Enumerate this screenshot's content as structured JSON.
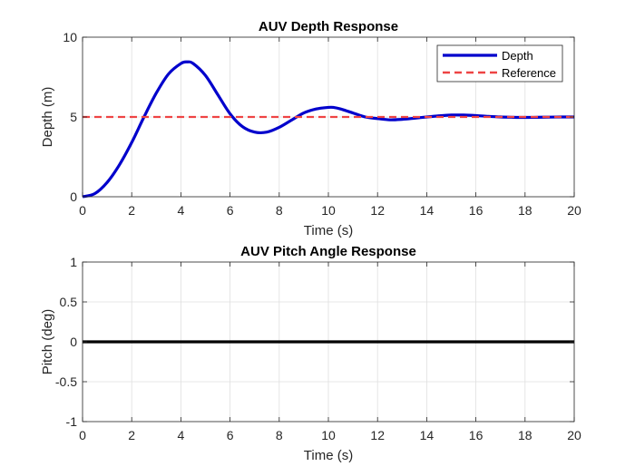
{
  "chart_data": [
    {
      "type": "line",
      "title": "AUV Depth Response",
      "xlabel": "Time (s)",
      "ylabel": "Depth (m)",
      "xlim": [
        0,
        20
      ],
      "ylim": [
        0,
        10
      ],
      "xticks": [
        0,
        2,
        4,
        6,
        8,
        10,
        12,
        14,
        16,
        18,
        20
      ],
      "yticks": [
        0,
        5,
        10
      ],
      "grid": true,
      "legend_position": "top-right",
      "series": [
        {
          "name": "Depth",
          "color": "#0000cc",
          "style": "solid",
          "x": [
            0,
            0.5,
            1,
            1.5,
            2,
            2.5,
            3,
            3.5,
            4,
            4.25,
            4.5,
            5,
            5.5,
            6,
            6.5,
            7,
            7.5,
            8,
            8.5,
            9,
            9.5,
            10,
            10.2,
            10.5,
            11,
            11.5,
            12,
            12.5,
            13,
            13.5,
            14,
            14.5,
            15,
            15.5,
            16,
            16.5,
            17,
            17.5,
            18,
            18.5,
            19,
            19.5,
            20
          ],
          "y": [
            0,
            0.2,
            0.9,
            2.0,
            3.4,
            5.0,
            6.5,
            7.7,
            8.35,
            8.45,
            8.35,
            7.6,
            6.4,
            5.2,
            4.4,
            4.05,
            4.05,
            4.35,
            4.8,
            5.25,
            5.5,
            5.6,
            5.6,
            5.5,
            5.25,
            5.0,
            4.9,
            4.82,
            4.85,
            4.92,
            5.0,
            5.07,
            5.12,
            5.12,
            5.09,
            5.04,
            5.0,
            4.98,
            4.97,
            4.98,
            4.99,
            5.0,
            5.0
          ]
        },
        {
          "name": "Reference",
          "color": "#ee4444",
          "style": "dashed",
          "x": [
            0,
            20
          ],
          "y": [
            5,
            5
          ]
        }
      ]
    },
    {
      "type": "line",
      "title": "AUV Pitch Angle Response",
      "xlabel": "Time (s)",
      "ylabel": "Pitch (deg)",
      "xlim": [
        0,
        20
      ],
      "ylim": [
        -1,
        1
      ],
      "xticks": [
        0,
        2,
        4,
        6,
        8,
        10,
        12,
        14,
        16,
        18,
        20
      ],
      "yticks": [
        -1,
        -0.5,
        0,
        0.5,
        1
      ],
      "grid": true,
      "series": [
        {
          "color": "#000000",
          "style": "solid",
          "x": [
            0,
            20
          ],
          "y": [
            0,
            0
          ]
        }
      ]
    }
  ]
}
